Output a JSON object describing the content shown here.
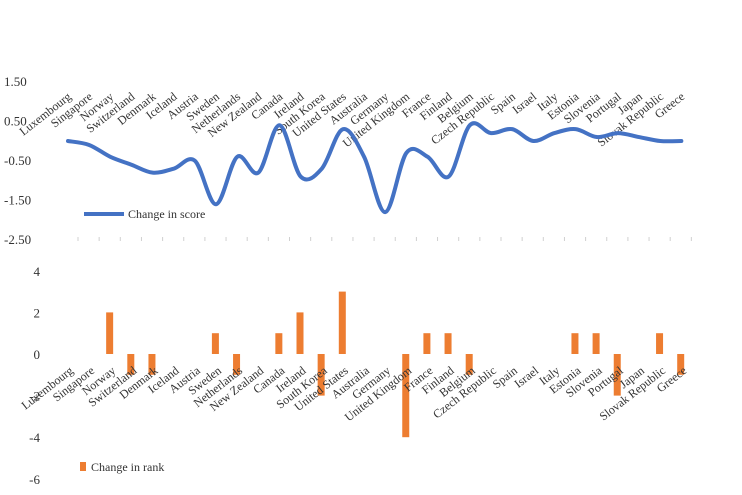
{
  "chart_data": [
    {
      "type": "line",
      "categories": [
        "Luxembourg",
        "Singapore",
        "Norway",
        "Switzerland",
        "Denmark",
        "Iceland",
        "Austria",
        "Sweden",
        "Netherlands",
        "New Zealand",
        "Canada",
        "Ireland",
        "South Korea",
        "United States",
        "Australia",
        "Germany",
        "United Kingdom",
        "France",
        "Finland",
        "Belgium",
        "Czech Republic",
        "Spain",
        "Israel",
        "Italy",
        "Estonia",
        "Slovenia",
        "Portugal",
        "Japan",
        "Slovak Republic",
        "Greece"
      ],
      "series": [
        {
          "name": "Change in score",
          "color": "#4472C4",
          "values": [
            0.0,
            -0.1,
            -0.4,
            -0.6,
            -0.8,
            -0.7,
            -0.5,
            -1.6,
            -0.4,
            -0.8,
            0.4,
            -0.9,
            -0.7,
            0.3,
            -0.4,
            -1.8,
            -0.3,
            -0.4,
            -0.9,
            0.4,
            0.2,
            0.3,
            0.0,
            0.2,
            0.3,
            0.1,
            0.2,
            0.1,
            0.0,
            0.0
          ]
        }
      ],
      "yticks": [
        "1.50",
        "0.50",
        "-0.50",
        "-1.50",
        "-2.50"
      ],
      "ylim": [
        -2.5,
        1.5
      ],
      "legend": "bottom-left",
      "grid": false
    },
    {
      "type": "bar",
      "categories": [
        "Luxembourg",
        "Singapore",
        "Norway",
        "Switzerland",
        "Denmark",
        "Iceland",
        "Austria",
        "Sweden",
        "Netherlands",
        "New Zealand",
        "Canada",
        "Ireland",
        "South Korea",
        "United States",
        "Australia",
        "Germany",
        "United Kingdom",
        "France",
        "Finland",
        "Belgium",
        "Czech Republic",
        "Spain",
        "Israel",
        "Italy",
        "Estonia",
        "Slovenia",
        "Portugal",
        "Japan",
        "Slovak Republic",
        "Greece"
      ],
      "series": [
        {
          "name": "Change in rank",
          "color": "#ED7D31",
          "values": [
            0,
            2,
            -1,
            -1,
            0,
            0,
            1,
            -1,
            0,
            1,
            2,
            -2,
            3,
            0,
            0,
            -4,
            1,
            1,
            -1,
            0,
            0,
            0,
            0,
            1,
            1,
            -2,
            0,
            1,
            -1,
            0
          ]
        }
      ],
      "yticks": [
        "4",
        "2",
        "0",
        "-2",
        "-4",
        "-6"
      ],
      "ylim": [
        -6,
        4
      ],
      "legend": "bottom-left",
      "grid": false
    }
  ]
}
